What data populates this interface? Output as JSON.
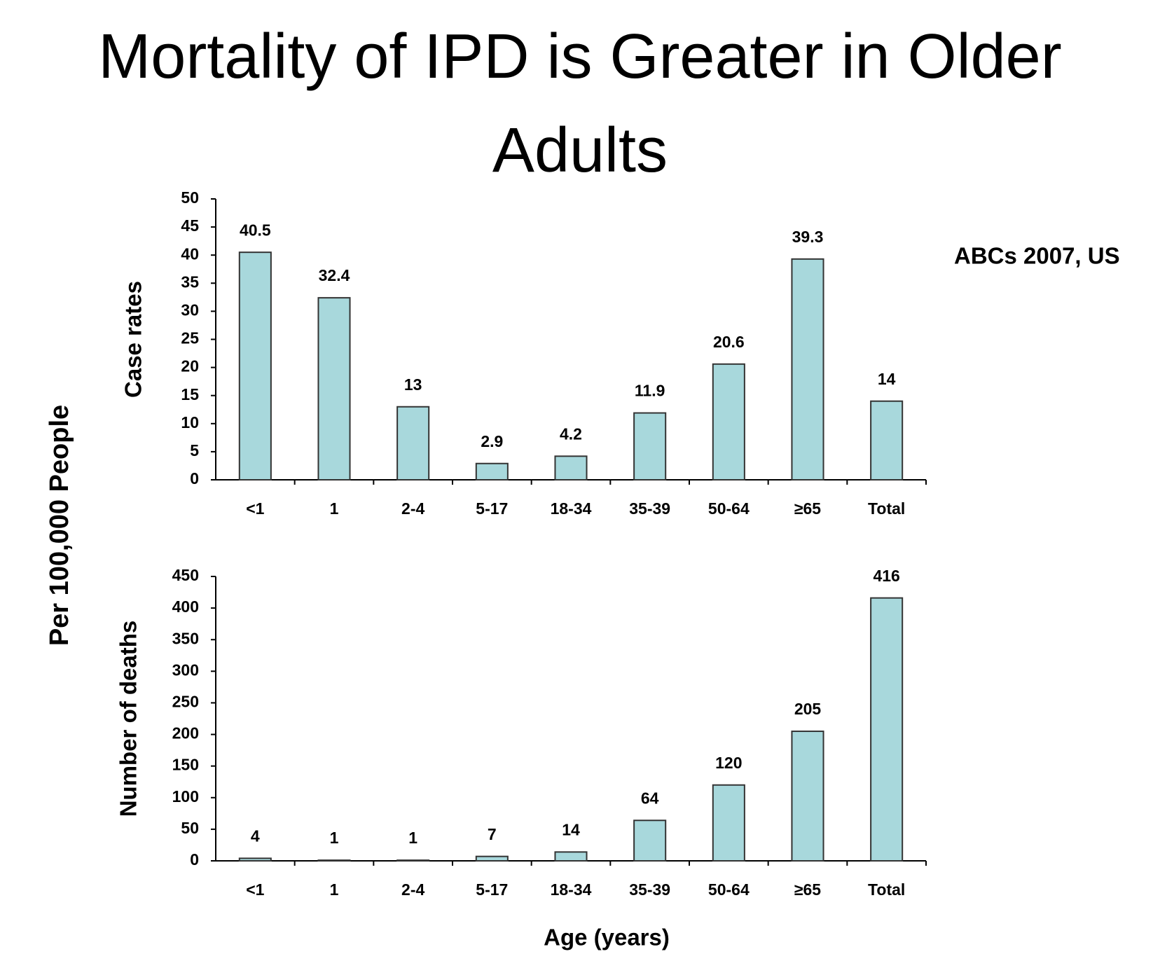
{
  "title": "Mortality of IPD is Greater in Older Adults",
  "annotation": "ABCs 2007, US",
  "ylabel": "Per 100,000 People",
  "xlabel": "Age (years)",
  "chart_data": [
    {
      "type": "bar",
      "ylabel": "Case rates",
      "categories": [
        "<1",
        "1",
        "2-4",
        "5-17",
        "18-34",
        "35-39",
        "50-64",
        "≥65",
        "Total"
      ],
      "values": [
        40.5,
        32.4,
        13,
        2.9,
        4.2,
        11.9,
        20.6,
        39.3,
        14
      ],
      "color": "#a8d8dc",
      "ylim": [
        0,
        50
      ],
      "yticks": [
        0,
        5,
        10,
        15,
        20,
        25,
        30,
        35,
        40,
        45,
        50
      ]
    },
    {
      "type": "bar",
      "ylabel": "Number of deaths",
      "categories": [
        "<1",
        "1",
        "2-4",
        "5-17",
        "18-34",
        "35-39",
        "50-64",
        "≥65",
        "Total"
      ],
      "values": [
        4,
        1,
        1,
        7,
        14,
        64,
        120,
        205,
        416
      ],
      "color": "#a8d8dc",
      "ylim": [
        0,
        450
      ],
      "yticks": [
        0,
        50,
        100,
        150,
        200,
        250,
        300,
        350,
        400,
        450
      ]
    }
  ]
}
